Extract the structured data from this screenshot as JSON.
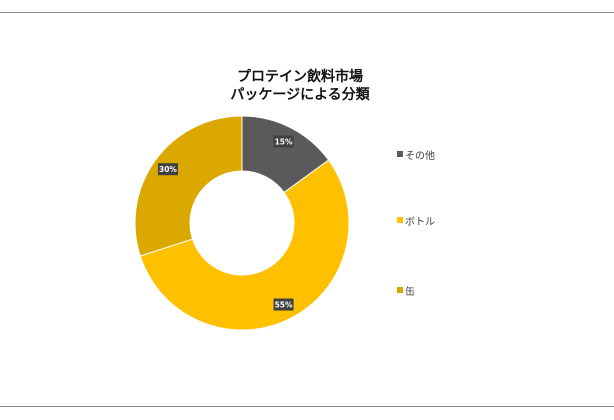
{
  "chart_data": {
    "type": "pie",
    "donut": true,
    "title_lines": [
      "プロテイン飲料市場",
      "パッケージによる分類"
    ],
    "categories": [
      "その他",
      "ボトル",
      "缶"
    ],
    "values": [
      15,
      55,
      30
    ],
    "labels": [
      "15%",
      "55%",
      "30%"
    ],
    "colors": [
      "#5a5a5a",
      "#ffc000",
      "#dba800"
    ],
    "legend_position": "right"
  }
}
